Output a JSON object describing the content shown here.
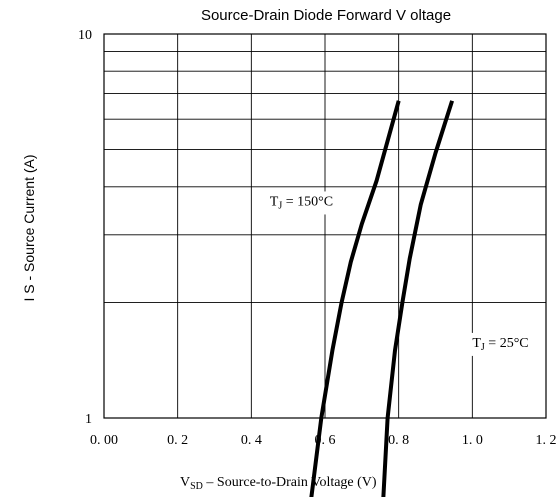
{
  "chart_data": {
    "type": "line",
    "title": "Source-Drain Diode Forward V   oltage",
    "xlabel": {
      "main": "V",
      "sub": "SD",
      "rest": "  – Source-to-Drain Voltage (V)"
    },
    "ylabel": "I S  -  Source Current (A)",
    "xlim": [
      0.0,
      1.2
    ],
    "ylim": [
      1,
      10
    ],
    "yscale": "log",
    "grid": true,
    "x_ticks": [
      {
        "value": 0.0,
        "label": "0. 00"
      },
      {
        "value": 0.2,
        "label": "0. 2"
      },
      {
        "value": 0.4,
        "label": "0. 4"
      },
      {
        "value": 0.6,
        "label": "0. 6"
      },
      {
        "value": 0.8,
        "label": "0. 8"
      },
      {
        "value": 1.0,
        "label": "1. 0"
      },
      {
        "value": 1.2,
        "label": "1. 2"
      }
    ],
    "y_ticks": [
      {
        "value": 1,
        "label": "1"
      },
      {
        "value": 10,
        "label": "10"
      }
    ],
    "y_gridlines": [
      2,
      3,
      4,
      5,
      6,
      7,
      8,
      9
    ],
    "series": [
      {
        "label": {
          "main": "T",
          "sub": "J",
          "rest": " = 150°C"
        },
        "label_at": [
          0.45,
          3.62
        ],
        "points": [
          [
            0.555,
            0.54
          ],
          [
            0.59,
            1.0
          ],
          [
            0.62,
            1.5
          ],
          [
            0.645,
            2.0
          ],
          [
            0.67,
            2.55
          ],
          [
            0.7,
            3.2
          ],
          [
            0.74,
            4.15
          ],
          [
            0.8,
            6.7
          ]
        ]
      },
      {
        "label": {
          "main": "T",
          "sub": "J",
          "rest": " = 25°C"
        },
        "label_at": [
          1.0,
          1.55
        ],
        "points": [
          [
            0.755,
            0.54
          ],
          [
            0.77,
            1.0
          ],
          [
            0.79,
            1.5
          ],
          [
            0.81,
            2.0
          ],
          [
            0.83,
            2.6
          ],
          [
            0.86,
            3.6
          ],
          [
            0.9,
            4.9
          ],
          [
            0.945,
            6.7
          ]
        ]
      }
    ]
  }
}
